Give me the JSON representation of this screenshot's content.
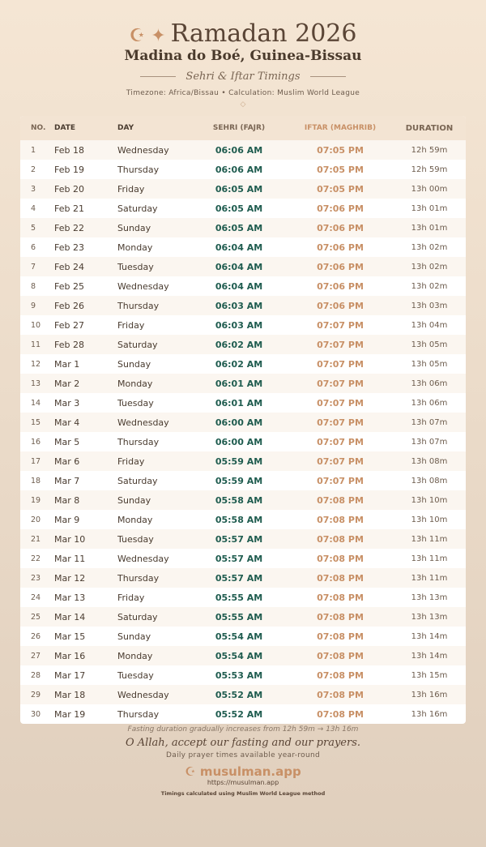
{
  "header": {
    "icon": "☪ ✦",
    "title": "Ramadan 2026",
    "location": "Madina do Boé, Guinea-Bissau",
    "subtitle": "Sehri & Iftar Timings",
    "meta": "Timezone: Africa/Bissau • Calculation: Muslim World League",
    "ornament": "◇"
  },
  "columns": [
    "NO.",
    "DATE",
    "DAY",
    "SEHRI (FAJR)",
    "IFTAR (MAGHRIB)",
    "DURATION"
  ],
  "rows": [
    [
      "1",
      "Feb 18",
      "Wednesday",
      "06:06 AM",
      "07:05 PM",
      "12h 59m"
    ],
    [
      "2",
      "Feb 19",
      "Thursday",
      "06:06 AM",
      "07:05 PM",
      "12h 59m"
    ],
    [
      "3",
      "Feb 20",
      "Friday",
      "06:05 AM",
      "07:05 PM",
      "13h 00m"
    ],
    [
      "4",
      "Feb 21",
      "Saturday",
      "06:05 AM",
      "07:06 PM",
      "13h 01m"
    ],
    [
      "5",
      "Feb 22",
      "Sunday",
      "06:05 AM",
      "07:06 PM",
      "13h 01m"
    ],
    [
      "6",
      "Feb 23",
      "Monday",
      "06:04 AM",
      "07:06 PM",
      "13h 02m"
    ],
    [
      "7",
      "Feb 24",
      "Tuesday",
      "06:04 AM",
      "07:06 PM",
      "13h 02m"
    ],
    [
      "8",
      "Feb 25",
      "Wednesday",
      "06:04 AM",
      "07:06 PM",
      "13h 02m"
    ],
    [
      "9",
      "Feb 26",
      "Thursday",
      "06:03 AM",
      "07:06 PM",
      "13h 03m"
    ],
    [
      "10",
      "Feb 27",
      "Friday",
      "06:03 AM",
      "07:07 PM",
      "13h 04m"
    ],
    [
      "11",
      "Feb 28",
      "Saturday",
      "06:02 AM",
      "07:07 PM",
      "13h 05m"
    ],
    [
      "12",
      "Mar 1",
      "Sunday",
      "06:02 AM",
      "07:07 PM",
      "13h 05m"
    ],
    [
      "13",
      "Mar 2",
      "Monday",
      "06:01 AM",
      "07:07 PM",
      "13h 06m"
    ],
    [
      "14",
      "Mar 3",
      "Tuesday",
      "06:01 AM",
      "07:07 PM",
      "13h 06m"
    ],
    [
      "15",
      "Mar 4",
      "Wednesday",
      "06:00 AM",
      "07:07 PM",
      "13h 07m"
    ],
    [
      "16",
      "Mar 5",
      "Thursday",
      "06:00 AM",
      "07:07 PM",
      "13h 07m"
    ],
    [
      "17",
      "Mar 6",
      "Friday",
      "05:59 AM",
      "07:07 PM",
      "13h 08m"
    ],
    [
      "18",
      "Mar 7",
      "Saturday",
      "05:59 AM",
      "07:07 PM",
      "13h 08m"
    ],
    [
      "19",
      "Mar 8",
      "Sunday",
      "05:58 AM",
      "07:08 PM",
      "13h 10m"
    ],
    [
      "20",
      "Mar 9",
      "Monday",
      "05:58 AM",
      "07:08 PM",
      "13h 10m"
    ],
    [
      "21",
      "Mar 10",
      "Tuesday",
      "05:57 AM",
      "07:08 PM",
      "13h 11m"
    ],
    [
      "22",
      "Mar 11",
      "Wednesday",
      "05:57 AM",
      "07:08 PM",
      "13h 11m"
    ],
    [
      "23",
      "Mar 12",
      "Thursday",
      "05:57 AM",
      "07:08 PM",
      "13h 11m"
    ],
    [
      "24",
      "Mar 13",
      "Friday",
      "05:55 AM",
      "07:08 PM",
      "13h 13m"
    ],
    [
      "25",
      "Mar 14",
      "Saturday",
      "05:55 AM",
      "07:08 PM",
      "13h 13m"
    ],
    [
      "26",
      "Mar 15",
      "Sunday",
      "05:54 AM",
      "07:08 PM",
      "13h 14m"
    ],
    [
      "27",
      "Mar 16",
      "Monday",
      "05:54 AM",
      "07:08 PM",
      "13h 14m"
    ],
    [
      "28",
      "Mar 17",
      "Tuesday",
      "05:53 AM",
      "07:08 PM",
      "13h 15m"
    ],
    [
      "29",
      "Mar 18",
      "Wednesday",
      "05:52 AM",
      "07:08 PM",
      "13h 16m"
    ],
    [
      "30",
      "Mar 19",
      "Thursday",
      "05:52 AM",
      "07:08 PM",
      "13h 16m"
    ]
  ],
  "footer": {
    "note": "Fasting duration gradually increases from 12h 59m → 13h 16m",
    "dua": "O Allah, accept our fasting and our prayers.",
    "tagline": "Daily prayer times available year-round",
    "brand": "☪ musulman.app",
    "url": "https://musulman.app",
    "method": "Timings calculated using Muslim World League method"
  },
  "colors": {
    "sehri": "#1f5c4f",
    "iftar": "#c89066",
    "accent": "#c89066"
  }
}
